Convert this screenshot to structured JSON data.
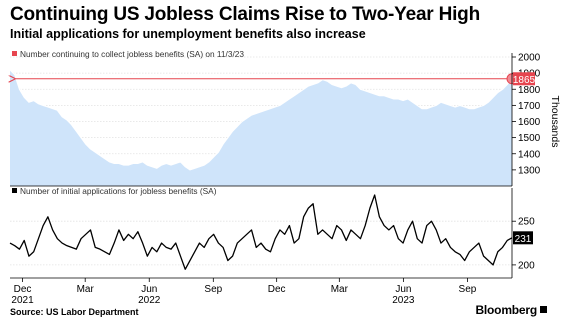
{
  "title": "Continuing US Jobless Claims Rise to Two-Year High",
  "subtitle": "Initial applications for unemployment benefits also increase",
  "source": "Source: US Labor Department",
  "brand": "Bloomberg",
  "colors": {
    "area_fill": "#cfe4fa",
    "area_line": "#ffffff",
    "reference_line": "#e6454f",
    "marker_fill": "#f08a94",
    "line": "#000000",
    "legend_swatch_top": "#e6454f",
    "legend_swatch_bottom": "#000000"
  },
  "chart_data": [
    {
      "type": "area",
      "legend": "Number continuing to collect jobless benefits (SA) on 11/3/23",
      "ylabel": "Thousands",
      "ylim": [
        1200,
        2000
      ],
      "yticks": [
        1300,
        1400,
        1500,
        1600,
        1700,
        1800,
        1900,
        2000
      ],
      "x_start": "2021-11-13",
      "x_end": "2023-11-04",
      "reference_value": 1865,
      "reference_start": "2021-11-20",
      "end_label": "1865",
      "values": [
        1920,
        1890,
        1800,
        1750,
        1720,
        1730,
        1710,
        1700,
        1690,
        1680,
        1670,
        1630,
        1610,
        1580,
        1540,
        1500,
        1460,
        1430,
        1410,
        1390,
        1370,
        1350,
        1340,
        1340,
        1330,
        1330,
        1340,
        1340,
        1350,
        1330,
        1320,
        1310,
        1330,
        1340,
        1330,
        1340,
        1350,
        1320,
        1300,
        1310,
        1320,
        1330,
        1350,
        1380,
        1410,
        1460,
        1500,
        1540,
        1570,
        1600,
        1620,
        1640,
        1650,
        1660,
        1670,
        1680,
        1690,
        1700,
        1720,
        1740,
        1760,
        1780,
        1800,
        1820,
        1830,
        1840,
        1860,
        1850,
        1830,
        1820,
        1810,
        1820,
        1840,
        1830,
        1800,
        1790,
        1780,
        1770,
        1760,
        1760,
        1750,
        1740,
        1740,
        1730,
        1740,
        1720,
        1700,
        1680,
        1680,
        1690,
        1700,
        1720,
        1710,
        1700,
        1690,
        1700,
        1690,
        1680,
        1680,
        1690,
        1700,
        1720,
        1750,
        1780,
        1800,
        1830,
        1865
      ]
    },
    {
      "type": "line",
      "legend": "Number of initial applications for jobless benefits (SA)",
      "ylim": [
        185,
        280
      ],
      "yticks": [
        200,
        250
      ],
      "x_start": "2021-11-13",
      "x_end": "2023-11-04",
      "end_label": "231",
      "values": [
        225,
        222,
        218,
        228,
        210,
        215,
        230,
        245,
        255,
        240,
        230,
        225,
        222,
        220,
        218,
        230,
        235,
        240,
        220,
        218,
        215,
        212,
        225,
        240,
        228,
        235,
        230,
        238,
        225,
        210,
        220,
        215,
        225,
        220,
        218,
        225,
        210,
        195,
        205,
        215,
        225,
        220,
        230,
        235,
        225,
        220,
        205,
        210,
        225,
        230,
        235,
        240,
        220,
        225,
        218,
        215,
        230,
        240,
        235,
        245,
        225,
        230,
        255,
        265,
        270,
        235,
        240,
        235,
        230,
        245,
        240,
        228,
        240,
        235,
        230,
        245,
        265,
        280,
        255,
        245,
        240,
        245,
        230,
        225,
        240,
        250,
        230,
        225,
        245,
        250,
        240,
        225,
        230,
        220,
        215,
        212,
        205,
        215,
        220,
        225,
        210,
        205,
        200,
        215,
        220,
        228,
        231
      ]
    }
  ],
  "x_axis": {
    "ticks": [
      {
        "date": "2021-12-01",
        "label": "Dec",
        "year": "2021"
      },
      {
        "date": "2022-03-01",
        "label": "Mar",
        "year": ""
      },
      {
        "date": "2022-06-01",
        "label": "Jun",
        "year": "2022"
      },
      {
        "date": "2022-09-01",
        "label": "Sep",
        "year": ""
      },
      {
        "date": "2022-12-01",
        "label": "Dec",
        "year": ""
      },
      {
        "date": "2023-03-01",
        "label": "Mar",
        "year": ""
      },
      {
        "date": "2023-06-01",
        "label": "Jun",
        "year": "2023"
      },
      {
        "date": "2023-09-01",
        "label": "Sep",
        "year": ""
      }
    ]
  }
}
